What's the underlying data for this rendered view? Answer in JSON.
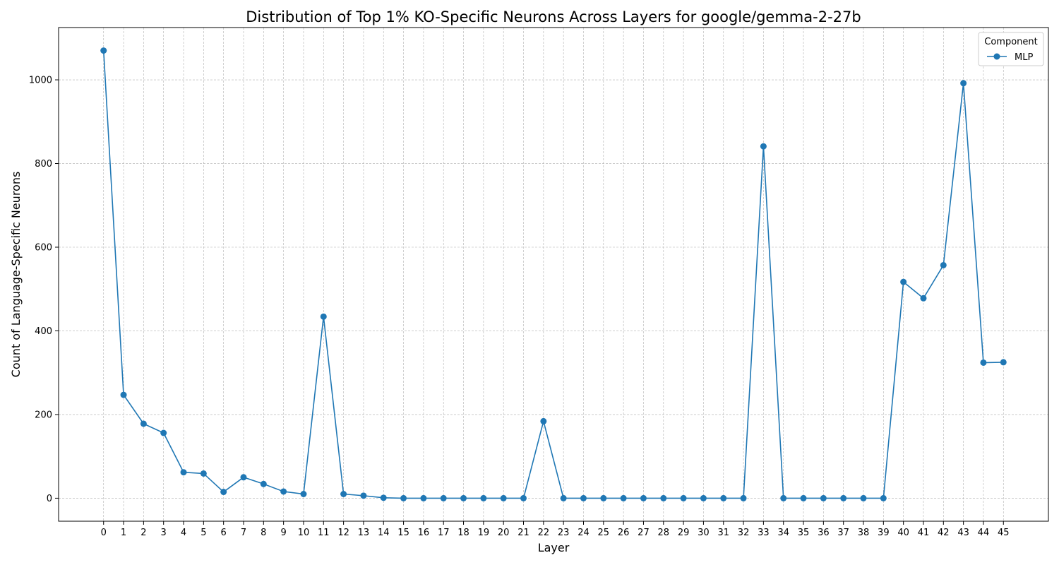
{
  "chart_data": {
    "type": "line",
    "title": "Distribution of Top 1% KO-Specific Neurons Across Layers for google/gemma-2-27b",
    "xlabel": "Layer",
    "ylabel": "Count of Language-Specific Neurons",
    "x": [
      0,
      1,
      2,
      3,
      4,
      5,
      6,
      7,
      8,
      9,
      10,
      11,
      12,
      13,
      14,
      15,
      16,
      17,
      18,
      19,
      20,
      21,
      22,
      23,
      24,
      25,
      26,
      27,
      28,
      29,
      30,
      31,
      32,
      33,
      34,
      35,
      36,
      37,
      38,
      39,
      40,
      41,
      42,
      43,
      44,
      45
    ],
    "y_ticks": [
      0,
      200,
      400,
      600,
      800,
      1000
    ],
    "ylim": [
      -55,
      1125
    ],
    "xlim": [
      -2.25,
      47.25
    ],
    "grid": true,
    "legend": {
      "title": "Component",
      "position": "top-right"
    },
    "series": [
      {
        "name": "MLP",
        "color": "#1f77b4",
        "values": [
          1070,
          247,
          178,
          156,
          62,
          59,
          15,
          50,
          34,
          16,
          10,
          434,
          10,
          6,
          1,
          0,
          0,
          0,
          0,
          0,
          0,
          0,
          184,
          0,
          0,
          0,
          0,
          0,
          0,
          0,
          0,
          0,
          0,
          841,
          0,
          0,
          0,
          0,
          0,
          0,
          517,
          478,
          557,
          992,
          324,
          325
        ]
      }
    ]
  }
}
